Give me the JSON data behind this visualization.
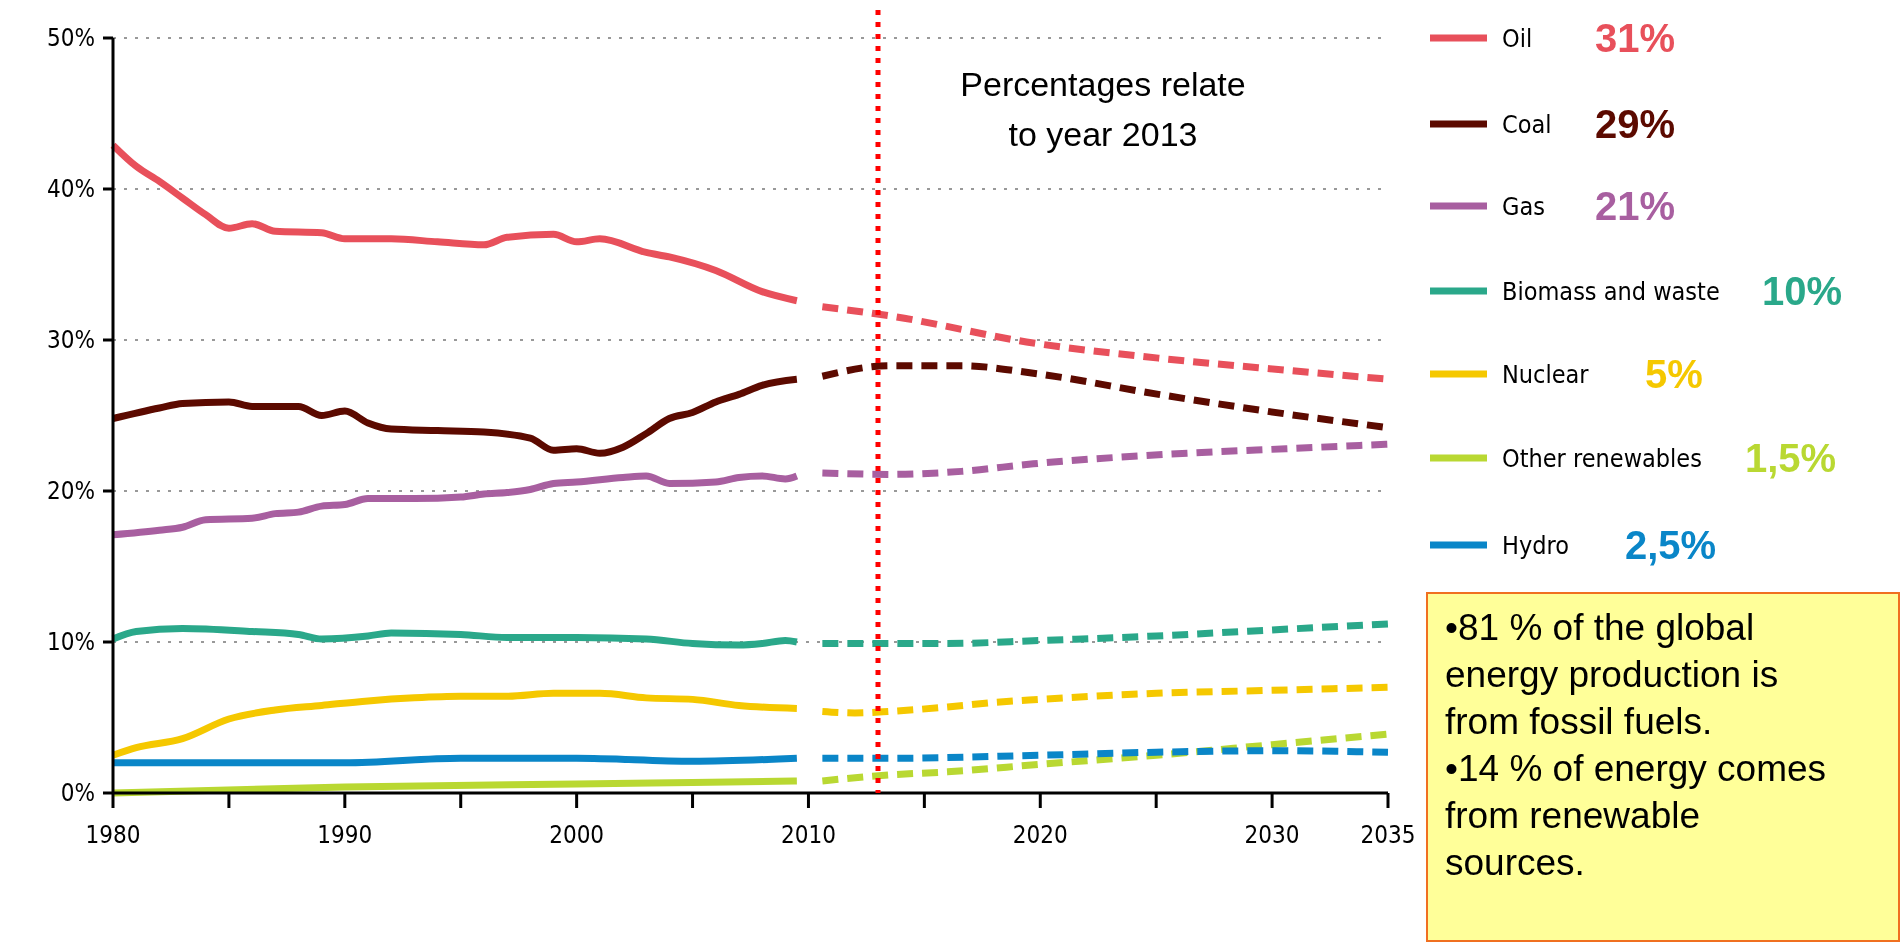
{
  "chart_data": {
    "type": "line",
    "xlim": [
      1980,
      2035
    ],
    "ylim": [
      0,
      50
    ],
    "xticks": [
      1980,
      {
        "value": 1985,
        "label": null
      },
      1990,
      {
        "value": 1995,
        "label": null
      },
      2000,
      {
        "value": 2005,
        "label": null
      },
      2010,
      {
        "value": 2015,
        "label": null
      },
      2020,
      {
        "value": 2025,
        "label": null
      },
      2030,
      2035
    ],
    "yticks": [
      {
        "value": 0,
        "label": "0%"
      },
      {
        "value": 10,
        "label": "10%"
      },
      {
        "value": 20,
        "label": "20%"
      },
      {
        "value": 30,
        "label": "30%"
      },
      {
        "value": 40,
        "label": "40%"
      },
      {
        "value": 50,
        "label": "50%"
      }
    ],
    "grid": "y",
    "legend": "right",
    "ref_lines": [
      {
        "axis": "x",
        "value": 2013,
        "label": "Percentages relate to year 2013",
        "color": "#ff0000",
        "line_style": "dotted"
      }
    ],
    "annotations": [
      "31%",
      "29%",
      "21%",
      "10%",
      "5%",
      "1,5%",
      "2,5%",
      "•81 % of the global energy production is from fossil fuels.",
      "•14 % of energy comes from renewable sources."
    ],
    "series": [
      {
        "name": "Oil",
        "color": "#e8505b",
        "line_style": "solid",
        "x": [
          1980,
          1981,
          1982,
          1983,
          1984,
          1985,
          1986,
          1987,
          1989,
          1990,
          1992,
          1994,
          1996,
          1997,
          1999,
          2000,
          2001,
          2003,
          2004,
          2006,
          2008,
          2009.5
        ],
        "values": [
          42.9,
          41.5,
          40.5,
          39.4,
          38.3,
          37.4,
          37.7,
          37.2,
          37.1,
          36.7,
          36.7,
          36.5,
          36.3,
          36.8,
          37.0,
          36.5,
          36.7,
          35.8,
          35.5,
          34.6,
          33.2,
          32.6
        ]
      },
      {
        "name": "Coal",
        "color": "#5c0a00",
        "line_style": "solid",
        "x": [
          1980,
          1982,
          1983,
          1985,
          1986,
          1988,
          1989,
          1990,
          1991,
          1992,
          1994,
          1996,
          1998,
          1999,
          2000,
          2001,
          2002,
          2003,
          2004,
          2005,
          2006,
          2007,
          2008,
          2009.5
        ],
        "values": [
          24.8,
          25.5,
          25.8,
          25.9,
          25.6,
          25.6,
          25.0,
          25.3,
          24.5,
          24.1,
          24.0,
          23.9,
          23.5,
          22.7,
          22.8,
          22.5,
          22.9,
          23.8,
          24.8,
          25.2,
          25.9,
          26.4,
          27.0,
          27.4
        ]
      },
      {
        "name": "Gas",
        "color": "#a85fa0",
        "line_style": "solid",
        "x": [
          1980,
          1982,
          1983,
          1984,
          1986,
          1987,
          1988,
          1989,
          1990,
          1991,
          1993,
          1995,
          1996,
          1997,
          1998,
          1999,
          2000,
          2002,
          2003,
          2004,
          2006,
          2007,
          2008,
          2009,
          2009.5
        ],
        "values": [
          17.1,
          17.4,
          17.6,
          18.1,
          18.2,
          18.5,
          18.6,
          19.0,
          19.1,
          19.5,
          19.5,
          19.6,
          19.8,
          19.9,
          20.1,
          20.5,
          20.6,
          20.9,
          21.0,
          20.5,
          20.6,
          20.9,
          21.0,
          20.8,
          21.0
        ]
      },
      {
        "name": "Biomass and waste",
        "color": "#2aa88a",
        "line_style": "solid",
        "x": [
          1980,
          1981,
          1983,
          1986,
          1988,
          1989,
          1991,
          1992,
          1995,
          1997,
          2000,
          2003,
          2005,
          2007,
          2008,
          2009,
          2009.5
        ],
        "values": [
          10.2,
          10.7,
          10.9,
          10.7,
          10.5,
          10.2,
          10.4,
          10.6,
          10.5,
          10.3,
          10.3,
          10.2,
          9.9,
          9.8,
          9.9,
          10.1,
          10.0
        ]
      },
      {
        "name": "Nuclear",
        "color": "#f5c800",
        "line_style": "solid",
        "x": [
          1980,
          1981,
          1983,
          1985,
          1987,
          1989,
          1991,
          1993,
          1995,
          1997,
          1999,
          2001,
          2003,
          2005,
          2007,
          2009.5
        ],
        "values": [
          2.5,
          3.0,
          3.6,
          4.9,
          5.5,
          5.8,
          6.1,
          6.3,
          6.4,
          6.4,
          6.6,
          6.6,
          6.3,
          6.2,
          5.8,
          5.6
        ]
      },
      {
        "name": "Other renewables",
        "color": "#b9d832",
        "line_style": "solid",
        "x": [
          1980,
          1990,
          2000,
          2005,
          2009.5
        ],
        "values": [
          0.0,
          0.4,
          0.6,
          0.7,
          0.8
        ]
      },
      {
        "name": "Hydro",
        "color": "#0a86c8",
        "line_style": "solid",
        "x": [
          1980,
          1990,
          1995,
          2000,
          2005,
          2009.5
        ],
        "values": [
          2.0,
          2.0,
          2.3,
          2.3,
          2.1,
          2.3
        ]
      },
      {
        "color": "#e8505b",
        "line_style": "dashed",
        "x": [
          2010.6,
          2013.5,
          2019.7,
          2025.1,
          2030.6,
          2035
        ],
        "values": [
          32.2,
          31.6,
          29.8,
          28.8,
          28.0,
          27.4
        ]
      },
      {
        "color": "#5c0a00",
        "line_style": "dashed",
        "x": [
          2010.6,
          2013.5,
          2016.6,
          2019.7,
          2025.1,
          2030.6,
          2035
        ],
        "values": [
          27.6,
          28.3,
          28.3,
          27.8,
          26.4,
          25.1,
          24.2
        ]
      },
      {
        "color": "#a85fa0",
        "line_style": "dashed",
        "x": [
          2010.6,
          2013.5,
          2016.6,
          2019.7,
          2025.1,
          2030.6,
          2035
        ],
        "values": [
          21.2,
          21.1,
          21.3,
          21.8,
          22.4,
          22.8,
          23.1
        ]
      },
      {
        "color": "#2aa88a",
        "line_style": "dashed",
        "x": [
          2010.6,
          2013.5,
          2016,
          2020,
          2025,
          2030,
          2035
        ],
        "values": [
          9.9,
          9.9,
          9.9,
          10.1,
          10.4,
          10.8,
          11.2
        ]
      },
      {
        "color": "#f5c800",
        "line_style": "dashed",
        "x": [
          2010.6,
          2012,
          2013.5,
          2016,
          2018,
          2020,
          2025,
          2030,
          2035
        ],
        "values": [
          5.4,
          5.3,
          5.4,
          5.7,
          6.0,
          6.2,
          6.6,
          6.8,
          7.0
        ]
      },
      {
        "color": "#b9d832",
        "line_style": "dashed",
        "x": [
          2010.6,
          2013.5,
          2016,
          2020,
          2025,
          2030,
          2035
        ],
        "values": [
          0.8,
          1.2,
          1.4,
          1.9,
          2.5,
          3.2,
          3.9
        ]
      },
      {
        "color": "#0a86c8",
        "line_style": "dashed",
        "x": [
          2010.6,
          2013.5,
          2020,
          2025,
          2030,
          2035
        ],
        "values": [
          2.3,
          2.3,
          2.5,
          2.7,
          2.8,
          2.7
        ]
      }
    ]
  }
}
